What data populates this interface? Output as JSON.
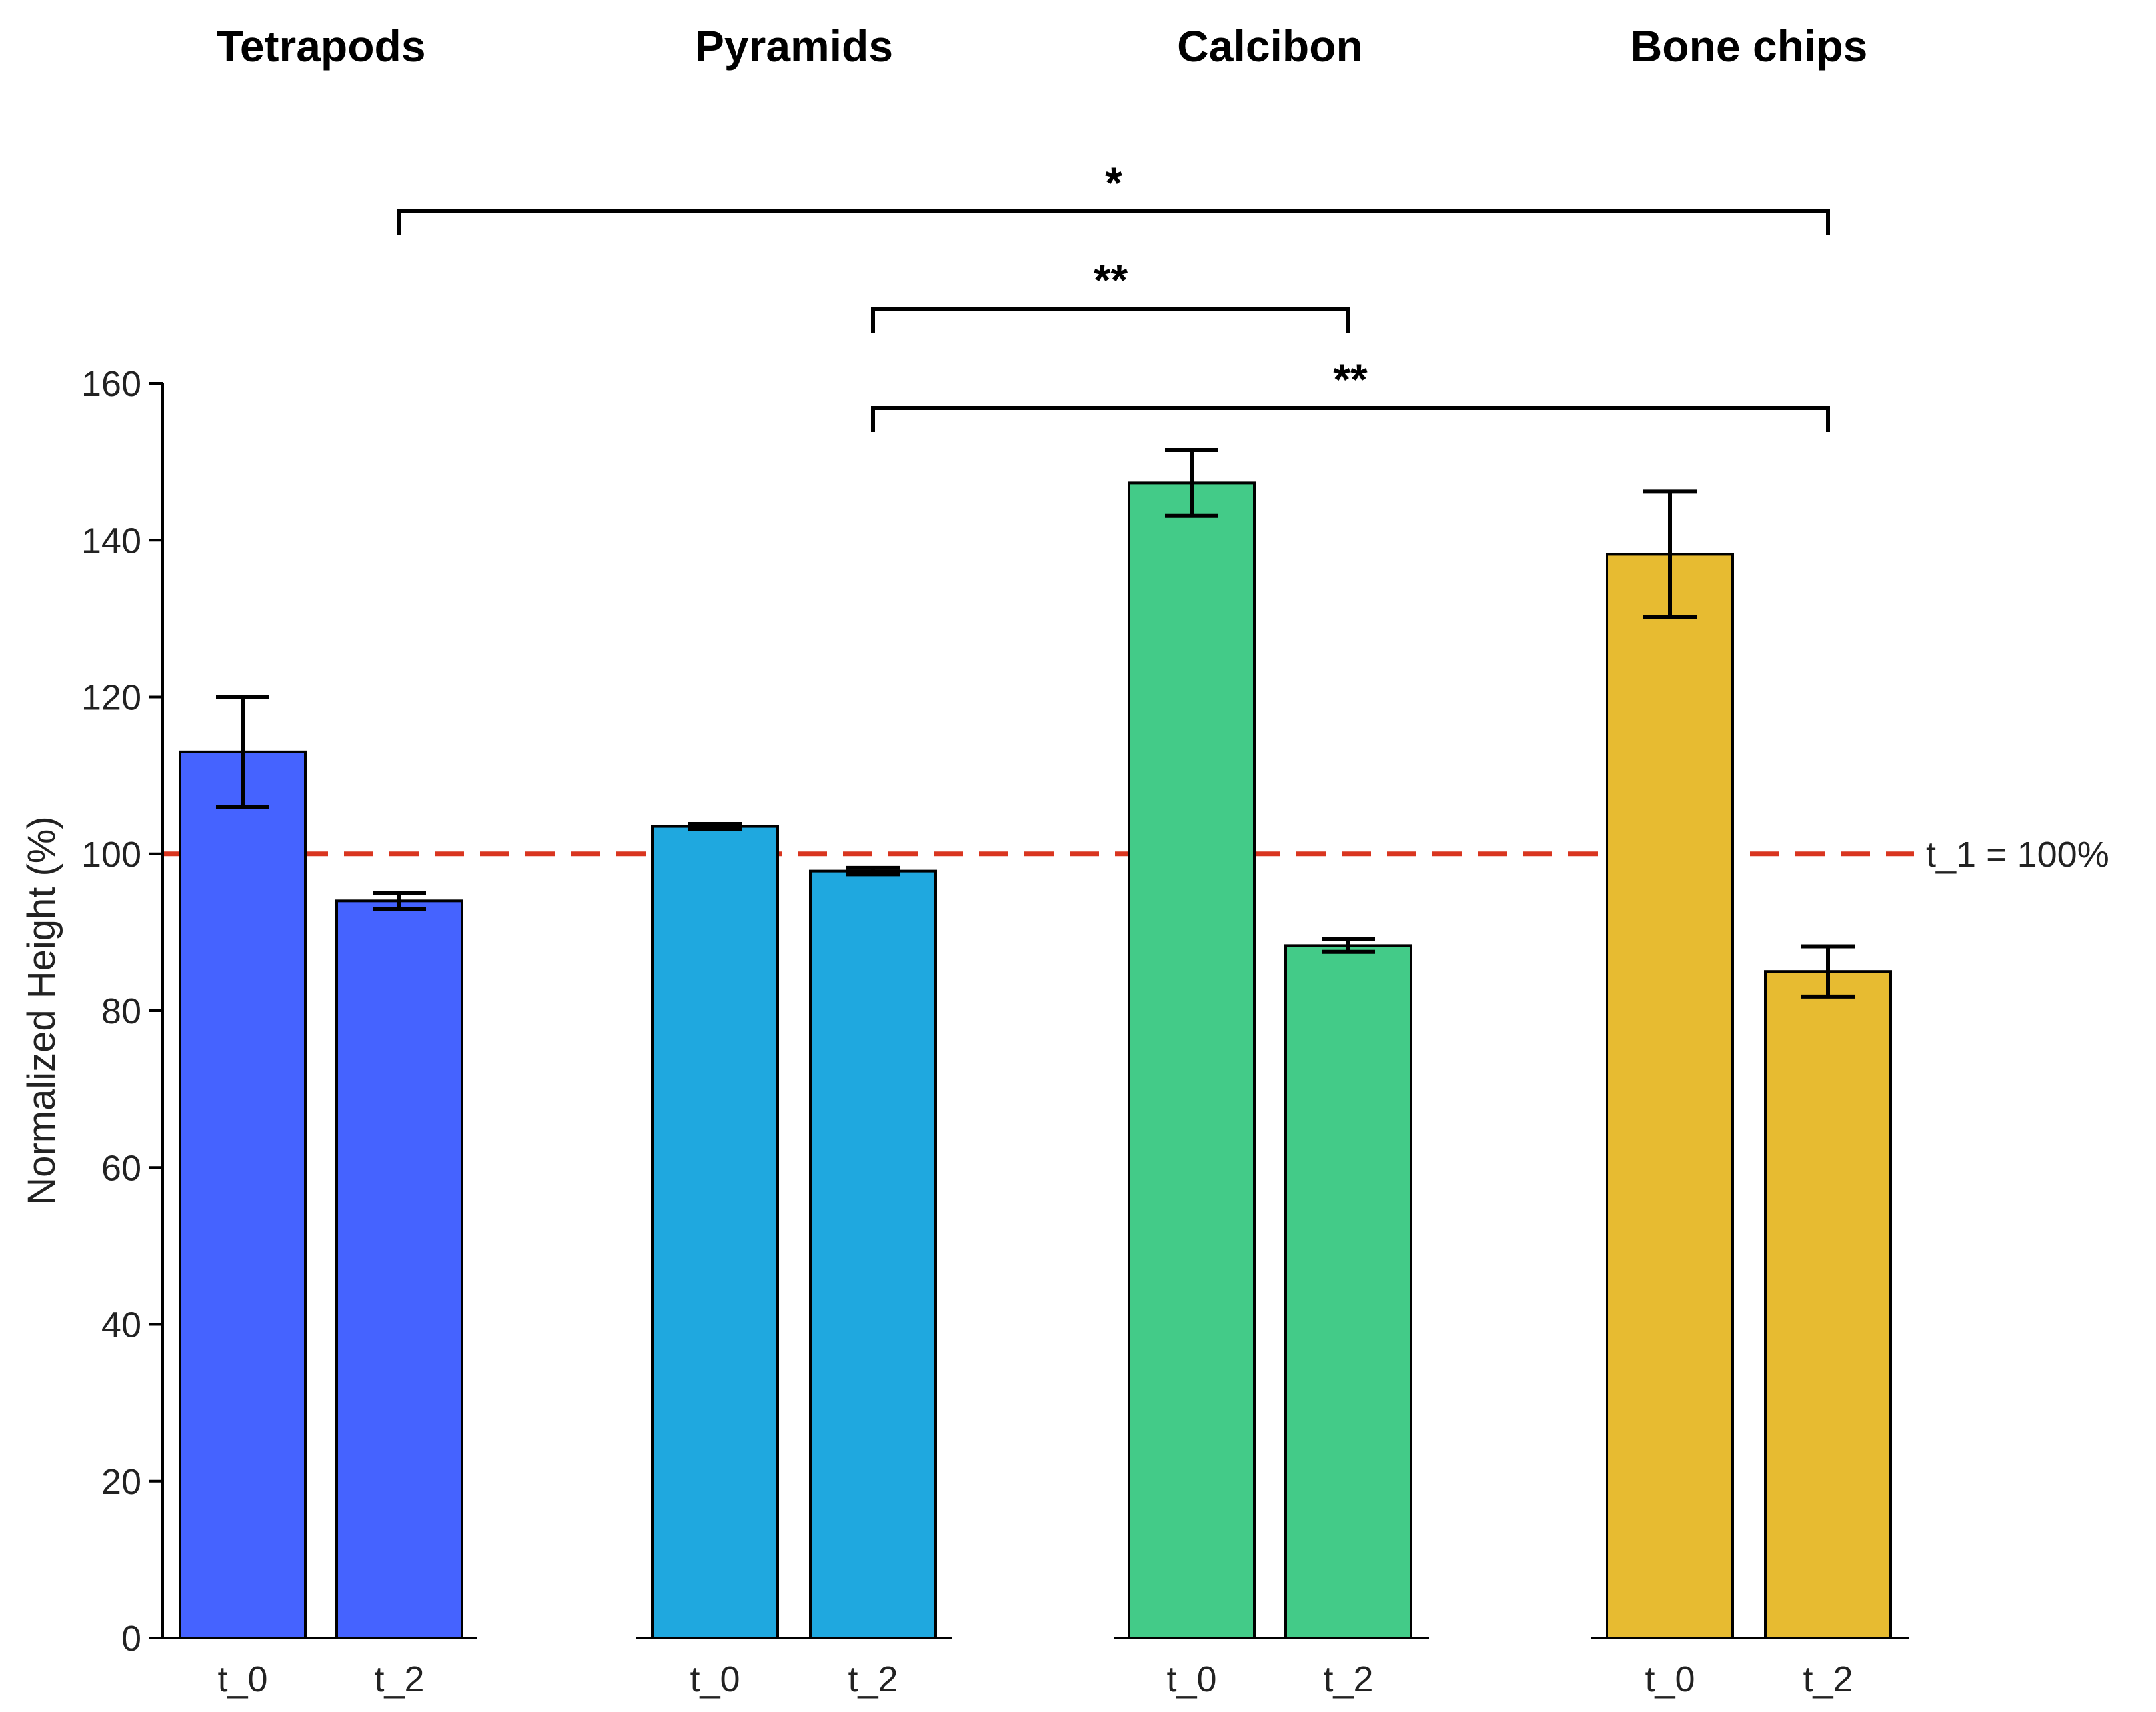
{
  "chart_data": {
    "type": "bar",
    "ylabel": "Normalized Height (%)",
    "ylim": [
      0,
      160
    ],
    "yticks": [
      0,
      20,
      40,
      60,
      80,
      100,
      120,
      140,
      160
    ],
    "reference_line": {
      "value": 100,
      "label": "t_1 = 100%",
      "color": "#d9351f",
      "style": "dashed"
    },
    "groups": [
      {
        "name": "Tetrapods",
        "color": "#4563ff",
        "bars": [
          {
            "label": "t_0",
            "value": 113,
            "error": 7
          },
          {
            "label": "t_2",
            "value": 94,
            "error": 1
          }
        ]
      },
      {
        "name": "Pyramids",
        "color": "#1fa8df",
        "bars": [
          {
            "label": "t_0",
            "value": 103.5,
            "error": 0.3
          },
          {
            "label": "t_2",
            "value": 97.8,
            "error": 0.4
          }
        ]
      },
      {
        "name": "Calcibon",
        "color": "#43cb88",
        "bars": [
          {
            "label": "t_0",
            "value": 147.3,
            "error": 4.2
          },
          {
            "label": "t_2",
            "value": 88.3,
            "error": 0.8
          }
        ]
      },
      {
        "name": "Bone chips",
        "color": "#e7bb31",
        "bars": [
          {
            "label": "t_0",
            "value": 138.2,
            "error": 8
          },
          {
            "label": "t_2",
            "value": 85,
            "error": 3.2
          }
        ]
      }
    ],
    "significance": [
      {
        "label": "*",
        "from": {
          "group": 0,
          "bar": 1
        },
        "to": {
          "group": 3,
          "bar": 1
        }
      },
      {
        "label": "**",
        "from": {
          "group": 1,
          "bar": 1
        },
        "to": {
          "group": 2,
          "bar": 1
        }
      },
      {
        "label": "**",
        "from": {
          "group": 1,
          "bar": 1
        },
        "to": {
          "group": 3,
          "bar": 1
        }
      }
    ]
  }
}
